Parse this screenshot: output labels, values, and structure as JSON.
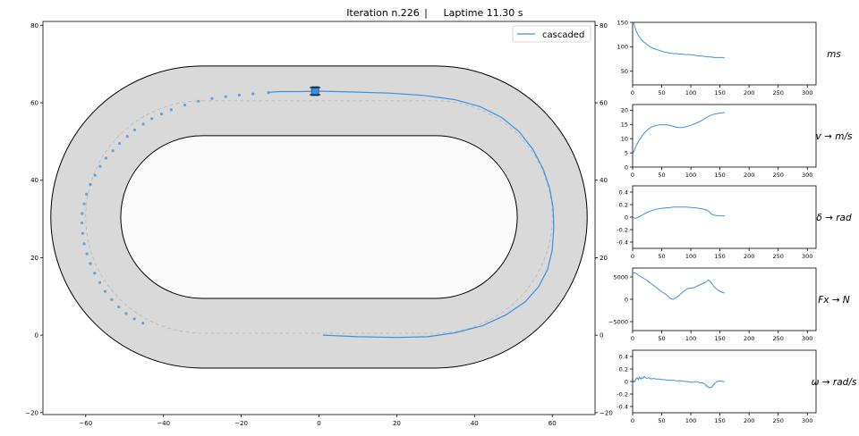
{
  "header": {
    "iteration_label": "Iteration n.226",
    "separator": "|",
    "laptime_label": "Laptime 11.30 s"
  },
  "colors": {
    "trace": "#3d8fe0",
    "track_fill": "#d9d9d9",
    "infield_fill": "#fafafa",
    "outline": "#000000",
    "centerline": "#b8b8b8",
    "axis": "#000000"
  },
  "chart_data": [
    {
      "type": "line",
      "name": "track-map",
      "legend": [
        "cascaded"
      ],
      "legend_position": "top-right",
      "xlim": [
        -71,
        71
      ],
      "ylim": [
        -20.5,
        81
      ],
      "xticks": [
        -60,
        -40,
        -20,
        0,
        20,
        40,
        60
      ],
      "yticks": [
        -20,
        0,
        20,
        40,
        60,
        80
      ],
      "track": {
        "straight_x": [
          -30,
          30
        ],
        "centerline_radius": 30,
        "track_half_width": 9,
        "center_y": 30.5
      },
      "series": [
        {
          "name": "cascaded",
          "points": [
            [
              1,
              0
            ],
            [
              10,
              -0.4
            ],
            [
              20,
              -0.6
            ],
            [
              28,
              -0.4
            ],
            [
              35,
              0.6
            ],
            [
              42,
              2.4
            ],
            [
              48,
              5.2
            ],
            [
              53,
              8.6
            ],
            [
              56.5,
              12.5
            ],
            [
              58.8,
              17
            ],
            [
              60,
              22
            ],
            [
              60.4,
              28
            ],
            [
              60.2,
              33
            ],
            [
              59.3,
              38
            ],
            [
              57.6,
              43
            ],
            [
              55,
              48
            ],
            [
              51.5,
              52.5
            ],
            [
              47,
              56.2
            ],
            [
              41.5,
              59
            ],
            [
              35,
              60.8
            ],
            [
              27,
              61.9
            ],
            [
              18,
              62.5
            ],
            [
              8,
              62.8
            ],
            [
              0,
              63
            ],
            [
              -5,
              62.9
            ],
            [
              -10,
              62.9
            ],
            [
              -13,
              62.7
            ]
          ]
        }
      ],
      "predicted_points": [
        [
          -13,
          62.6
        ],
        [
          -17,
          62.3
        ],
        [
          -20.5,
          62
        ],
        [
          -24,
          61.6
        ],
        [
          -27.5,
          61.1
        ],
        [
          -31,
          60.4
        ],
        [
          -34.5,
          59.4
        ],
        [
          -38,
          58.2
        ],
        [
          -40.5,
          57.1
        ],
        [
          -43,
          55.9
        ],
        [
          -45.2,
          54.5
        ],
        [
          -47.4,
          53
        ],
        [
          -49.3,
          51.3
        ],
        [
          -51.3,
          49.5
        ],
        [
          -53,
          47.6
        ],
        [
          -54.8,
          45.7
        ],
        [
          -56.3,
          43.6
        ],
        [
          -57.6,
          41.3
        ],
        [
          -58.8,
          38.9
        ],
        [
          -59.8,
          36.4
        ],
        [
          -60.4,
          33.9
        ],
        [
          -60.9,
          31.4
        ],
        [
          -61,
          29
        ],
        [
          -60.8,
          26.3
        ],
        [
          -60.4,
          23.6
        ],
        [
          -59.7,
          21
        ],
        [
          -58.8,
          18.5
        ],
        [
          -57.7,
          16
        ],
        [
          -56.4,
          13.6
        ],
        [
          -55,
          11.3
        ],
        [
          -53.3,
          9.2
        ],
        [
          -51.5,
          7.3
        ],
        [
          -49.6,
          5.6
        ],
        [
          -47.5,
          4.2
        ],
        [
          -45.3,
          3.1
        ]
      ],
      "car_position": [
        -1,
        63
      ]
    },
    {
      "type": "line",
      "name": "ms-plot",
      "ylabel": "$ms$",
      "xlim": [
        0,
        315
      ],
      "ylim": [
        22,
        150
      ],
      "xticks": [
        0,
        50,
        100,
        150,
        200,
        250,
        300
      ],
      "yticks": [
        50,
        100,
        150
      ],
      "series": [
        {
          "x": [
            0,
            2,
            4,
            6,
            8,
            10,
            13,
            16,
            20,
            25,
            30,
            35,
            40,
            45,
            50,
            55,
            60,
            65,
            70,
            75,
            80,
            85,
            90,
            95,
            100,
            105,
            110,
            115,
            120,
            125,
            130,
            135,
            140,
            145,
            150,
            155,
            158
          ],
          "y": [
            150,
            148,
            140,
            132,
            128,
            123,
            118,
            113,
            109,
            104,
            100,
            97,
            95,
            93,
            91,
            89,
            88,
            87,
            86,
            86,
            85,
            85,
            84,
            84,
            84,
            83,
            82,
            81,
            81,
            80,
            79,
            79,
            78,
            78,
            78,
            78,
            77
          ]
        }
      ]
    },
    {
      "type": "line",
      "name": "velocity-plot",
      "ylabel": "$v \\rightarrow \\frac{m}{s}$",
      "xlim": [
        0,
        315
      ],
      "ylim": [
        0,
        22
      ],
      "xticks": [
        0,
        50,
        100,
        150,
        200,
        250,
        300
      ],
      "yticks": [
        0,
        5,
        10,
        15,
        20
      ],
      "series": [
        {
          "x": [
            0,
            3,
            6,
            10,
            15,
            20,
            25,
            30,
            35,
            40,
            45,
            50,
            55,
            60,
            65,
            70,
            75,
            80,
            85,
            90,
            95,
            100,
            105,
            110,
            115,
            120,
            125,
            130,
            135,
            140,
            145,
            150,
            155,
            158
          ],
          "y": [
            4.5,
            6,
            7.5,
            9,
            10.6,
            12,
            13,
            13.8,
            14.3,
            14.6,
            14.8,
            14.9,
            14.9,
            14.8,
            14.6,
            14.3,
            14,
            13.9,
            13.9,
            14.1,
            14.4,
            14.7,
            15.1,
            15.5,
            16,
            16.5,
            17.2,
            17.8,
            18.3,
            18.6,
            18.8,
            19,
            19.1,
            19.2
          ]
        }
      ]
    },
    {
      "type": "line",
      "name": "steering-plot",
      "ylabel": "$\\delta \\rightarrow rad$",
      "xlim": [
        0,
        315
      ],
      "ylim": [
        -0.5,
        0.5
      ],
      "xticks": [
        0,
        50,
        100,
        150,
        200,
        250,
        300
      ],
      "yticks": [
        -0.4,
        -0.2,
        0.0,
        0.2,
        0.4
      ],
      "series": [
        {
          "x": [
            0,
            2,
            4,
            6,
            8,
            10,
            14,
            18,
            22,
            26,
            30,
            35,
            40,
            45,
            50,
            55,
            60,
            65,
            70,
            75,
            80,
            85,
            90,
            95,
            100,
            105,
            110,
            115,
            120,
            125,
            128,
            131,
            134,
            137,
            140,
            145,
            150,
            155,
            158
          ],
          "y": [
            0.0,
            -0.01,
            -0.02,
            -0.015,
            -0.01,
            0.0,
            0.02,
            0.04,
            0.06,
            0.08,
            0.095,
            0.11,
            0.125,
            0.135,
            0.14,
            0.145,
            0.15,
            0.155,
            0.16,
            0.16,
            0.16,
            0.162,
            0.16,
            0.158,
            0.155,
            0.15,
            0.145,
            0.14,
            0.13,
            0.12,
            0.11,
            0.09,
            0.06,
            0.04,
            0.03,
            0.025,
            0.022,
            0.02,
            0.02
          ]
        }
      ]
    },
    {
      "type": "line",
      "name": "force-plot",
      "ylabel": "$F_x \\rightarrow N$",
      "xlim": [
        0,
        315
      ],
      "ylim": [
        -7000,
        7000
      ],
      "xticks": [
        0,
        50,
        100,
        150,
        200,
        250,
        300
      ],
      "yticks": [
        -5000,
        0,
        5000
      ],
      "series": [
        {
          "x": [
            0,
            3,
            6,
            10,
            15,
            20,
            25,
            30,
            35,
            40,
            45,
            50,
            55,
            60,
            63,
            66,
            70,
            75,
            80,
            85,
            90,
            95,
            100,
            105,
            110,
            115,
            120,
            125,
            130,
            133,
            136,
            140,
            145,
            150,
            155,
            158
          ],
          "y": [
            5800,
            6000,
            5800,
            5400,
            5000,
            4600,
            4200,
            3700,
            3200,
            2700,
            2200,
            1700,
            1300,
            800,
            400,
            100,
            0,
            400,
            900,
            1500,
            2000,
            2400,
            2500,
            2600,
            2900,
            3200,
            3500,
            3800,
            4300,
            4000,
            3500,
            2800,
            2200,
            1800,
            1500,
            1400
          ]
        }
      ]
    },
    {
      "type": "line",
      "name": "yaw-rate-plot",
      "ylabel": "$\\omega \\rightarrow \\frac{rad}{s}$",
      "xlim": [
        0,
        315
      ],
      "ylim": [
        -0.5,
        0.5
      ],
      "xticks": [
        0,
        50,
        100,
        150,
        200,
        250,
        300
      ],
      "yticks": [
        -0.4,
        -0.2,
        0.0,
        0.2,
        0.4
      ],
      "series": [
        {
          "x": [
            0,
            2,
            4,
            6,
            8,
            10,
            12,
            14,
            16,
            18,
            20,
            24,
            28,
            32,
            36,
            40,
            45,
            50,
            55,
            60,
            65,
            70,
            75,
            80,
            85,
            90,
            95,
            100,
            105,
            110,
            115,
            120,
            124,
            128,
            132,
            136,
            140,
            145,
            150,
            155,
            158
          ],
          "y": [
            -0.04,
            0.01,
            0.0,
            0.04,
            0.06,
            0.03,
            0.07,
            0.04,
            0.06,
            0.05,
            0.08,
            0.05,
            0.06,
            0.04,
            0.05,
            0.04,
            0.04,
            0.03,
            0.03,
            0.02,
            0.02,
            0.02,
            0.01,
            0.01,
            0.01,
            0.0,
            0.0,
            -0.01,
            -0.01,
            0.0,
            -0.02,
            -0.02,
            -0.04,
            -0.08,
            -0.1,
            -0.09,
            -0.04,
            0.0,
            0.01,
            0.0,
            0.0
          ]
        }
      ]
    }
  ]
}
